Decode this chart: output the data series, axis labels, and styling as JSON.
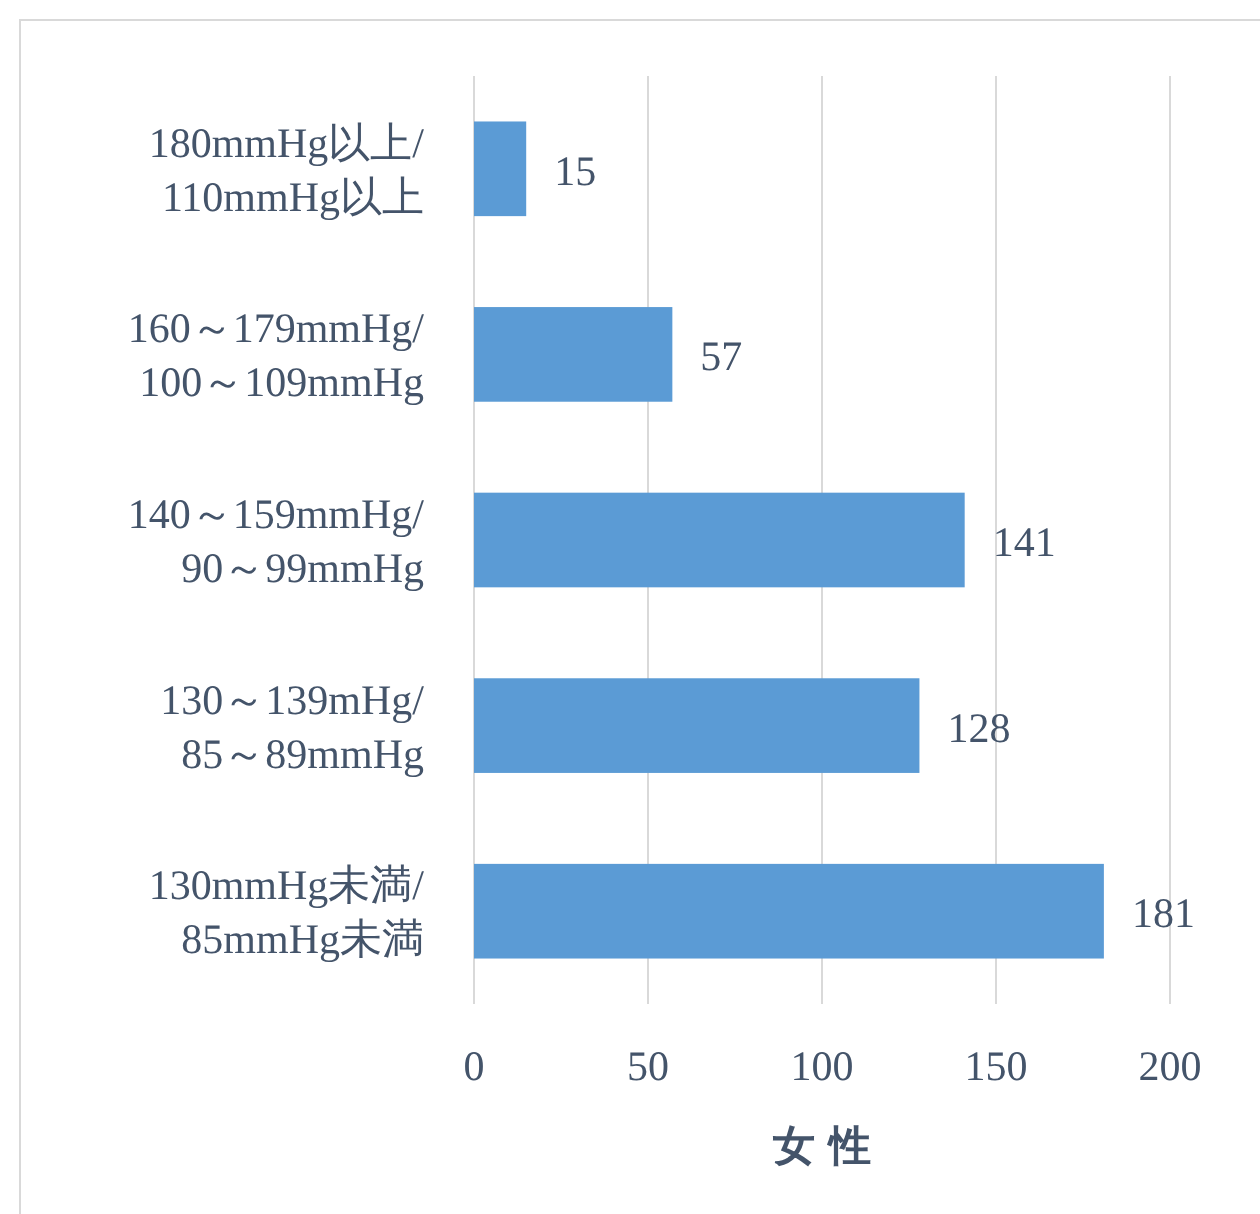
{
  "chart_data": {
    "type": "bar",
    "orientation": "horizontal",
    "categories": [
      "180mmHg以上/110mmHg以上",
      "160～179mmHg/100～109mmHg",
      "140～159mmHg/90～99mmHg",
      "130～139mHg/85～89mmHg",
      "130mmHg未満/85mmHg未満"
    ],
    "values": [
      15,
      57,
      141,
      128,
      181
    ],
    "color": "#5b9bd5",
    "xlabel": "女 性",
    "xlim": [
      0,
      200
    ],
    "xticks": [
      0,
      50,
      100,
      150,
      200
    ],
    "grid": "x",
    "data_labels": true
  }
}
